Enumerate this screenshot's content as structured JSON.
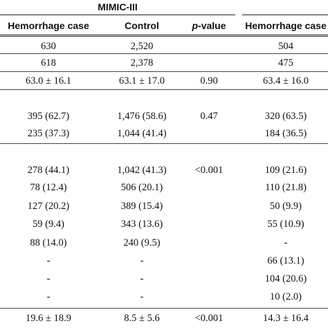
{
  "table": {
    "group_title": "MIMIC-III",
    "headers": {
      "col1": "Hemorrhage case",
      "col2": "Control",
      "col3_italic": "p",
      "col3_rest": "-value",
      "col4": "Hemorrhage case"
    },
    "rows": [
      {
        "c1": "630",
        "c2": "2,520",
        "c3": "",
        "c4": "504"
      },
      {
        "c1": "618",
        "c2": "2,378",
        "c3": "",
        "c4": "475"
      },
      {
        "c1": "63.0 ± 16.1",
        "c2": "63.1 ± 17.0",
        "c3": "0.90",
        "c4": "63.4 ± 16.0"
      },
      {
        "c1": "395 (62.7)",
        "c2": "1,476 (58.6)",
        "c3": "0.47",
        "c4": "320 (63.5)"
      },
      {
        "c1": "235 (37.3)",
        "c2": "1,044 (41.4)",
        "c3": "",
        "c4": "184 (36.5)"
      },
      {
        "c1": "278 (44.1)",
        "c2": "1,042 (41.3)",
        "c3": "<0.001",
        "c4": "109 (21.6)"
      },
      {
        "c1": "78 (12.4)",
        "c2": "506 (20.1)",
        "c3": "",
        "c4": "110 (21.8)"
      },
      {
        "c1": "127 (20.2)",
        "c2": "389 (15.4)",
        "c3": "",
        "c4": "50 (9.9)"
      },
      {
        "c1": "59 (9.4)",
        "c2": "343 (13.6)",
        "c3": "",
        "c4": "55 (10.9)"
      },
      {
        "c1": "88 (14.0)",
        "c2": "240 (9.5)",
        "c3": "",
        "c4": "-"
      },
      {
        "c1": "-",
        "c2": "-",
        "c3": "",
        "c4": "66 (13.1)"
      },
      {
        "c1": "-",
        "c2": "-",
        "c3": "",
        "c4": "104 (20.6)"
      },
      {
        "c1": "-",
        "c2": "-",
        "c3": "",
        "c4": "10 (2.0)"
      },
      {
        "c1": "19.6 ± 18.9",
        "c2": "8.5 ± 5.6",
        "c3": "<0.001",
        "c4": "14.3 ± 16.4"
      }
    ]
  }
}
